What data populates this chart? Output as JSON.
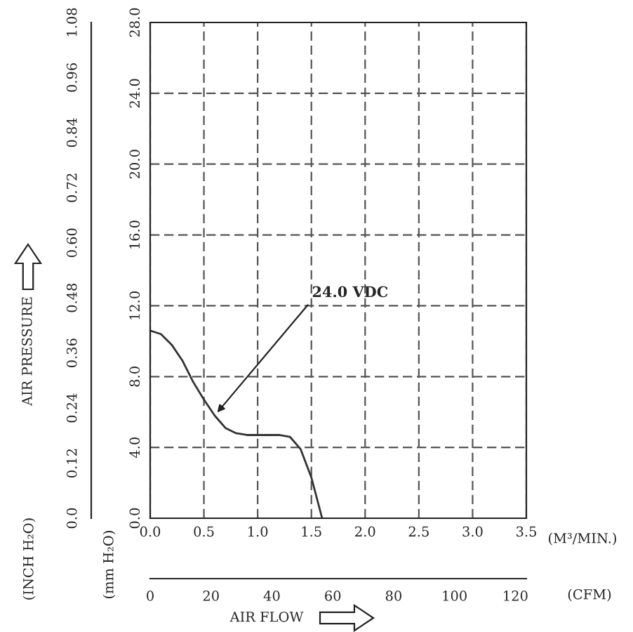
{
  "chart_data": {
    "type": "line",
    "x": [
      0,
      0.1,
      0.2,
      0.3,
      0.4,
      0.5,
      0.6,
      0.7,
      0.8,
      0.9,
      1.0,
      1.1,
      1.2,
      1.3,
      1.4,
      1.5,
      1.6
    ],
    "series": [
      {
        "name": "24.0 VDC",
        "color": "#333333",
        "values": [
          10.6,
          10.4,
          9.8,
          8.9,
          7.7,
          6.7,
          5.8,
          5.1,
          4.8,
          4.7,
          4.7,
          4.7,
          4.7,
          4.6,
          3.9,
          2.3,
          0
        ]
      }
    ],
    "xlim": [
      0,
      3.5
    ],
    "xticks": [
      {
        "value": 0,
        "label": "0.0"
      },
      0.5,
      {
        "value": 1,
        "label": "1.0"
      },
      1.5,
      {
        "value": 2,
        "label": "2.0"
      },
      2.5,
      {
        "value": 3,
        "label": "3.0"
      },
      3.5
    ],
    "ylim": [
      0,
      28
    ],
    "yticks": [
      {
        "value": 0,
        "label": "0.0"
      },
      {
        "value": 4,
        "label": "4.0"
      },
      {
        "value": 8,
        "label": "8.0"
      },
      {
        "value": 12,
        "label": "12.0"
      },
      {
        "value": 16,
        "label": "16.0"
      },
      {
        "value": 20,
        "label": "20.0"
      },
      {
        "value": 24,
        "label": "24.0"
      },
      {
        "value": 28,
        "label": "28.0"
      }
    ],
    "y2lim": [
      0,
      1.08
    ],
    "y2ticks": [
      {
        "value": 0,
        "label": "0.0"
      },
      0.12,
      0.24,
      0.36,
      0.48,
      {
        "value": 0.6,
        "label": "0.60"
      },
      0.72,
      0.84,
      0.96,
      1.08
    ],
    "x2lim": [
      0,
      123.6
    ],
    "x2ticks": [
      0,
      20,
      40,
      60,
      80,
      100,
      120
    ],
    "xlabel": "(M³/MIN.)",
    "x2label": "(CFM)",
    "ylabel": "(mm H₂O)",
    "y2label": "(INCH H₂O)",
    "annotations": [
      "AIR PRESSURE",
      "AIR FLOW"
    ],
    "grid": true,
    "legend": false,
    "marker": "none",
    "line_style": "solid"
  }
}
